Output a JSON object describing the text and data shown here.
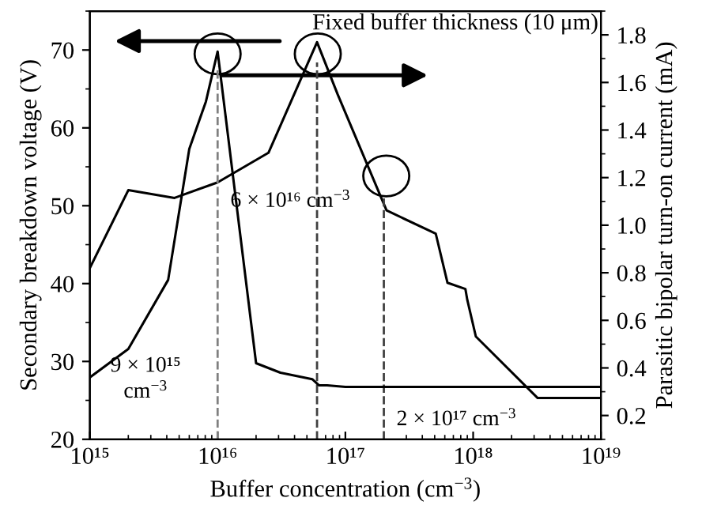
{
  "chart_data": {
    "type": "line",
    "xlabel": "Buffer concentration (cm$^{−3}$)",
    "ylabel": "Secondary breakdown voltage (V)",
    "y2label": "Parasitic bipolar turn-on current (mA)",
    "log": "x",
    "xlim": [
      1000000000000000.0,
      1e+19
    ],
    "xticks": [
      {
        "value": 1000000000000000.0,
        "label": "10¹⁵"
      },
      {
        "value": 1e+16,
        "label": "10¹⁶"
      },
      {
        "value": 1e+17,
        "label": "10¹⁷"
      },
      {
        "value": 1e+18,
        "label": "10¹⁸"
      },
      {
        "value": 1e+19,
        "label": "10¹⁹"
      }
    ],
    "ylim": [
      20,
      75
    ],
    "yticks": [
      20,
      30,
      40,
      50,
      60,
      70
    ],
    "y2lim": [
      0.1,
      1.9
    ],
    "y2ticks": [
      {
        "value": 0.2,
        "label": "0.2"
      },
      {
        "value": 0.4,
        "label": "0.4"
      },
      {
        "value": 0.6,
        "label": "0.6"
      },
      {
        "value": 0.8,
        "label": "0.8"
      },
      {
        "value": 1.0,
        "label": "1.0"
      },
      {
        "value": 1.2,
        "label": "1.2"
      },
      {
        "value": 1.4,
        "label": "1.4"
      },
      {
        "value": 1.6,
        "label": "1.6"
      },
      {
        "value": 1.8,
        "label": "1.8"
      }
    ],
    "grid": false,
    "legend": false,
    "marker": "none",
    "line_style": "solid",
    "series": [
      {
        "color": "#000000",
        "x": [
          1000000000000000.0,
          2000000000000000.0,
          4600000000000000.0,
          1e+16,
          2.5e+16,
          6e+16,
          8.7e+16,
          2.1e+17,
          5.1e+17,
          6.3e+17,
          8.7e+17,
          9e+17,
          1.05e+18,
          3.2e+18,
          1e+19
        ],
        "values": [
          42,
          52,
          51,
          53,
          56.8,
          71,
          64.3,
          49.4,
          46.4,
          40.1,
          39.3,
          37.9,
          33.2,
          25.3,
          25.3
        ]
      },
      {
        "color": "#000000",
        "axis": "y2",
        "x": [
          1000000000000000.0,
          2000000000000000.0,
          4100000000000000.0,
          6000000000000000.0,
          8100000000000000.0,
          1e+16,
          2e+16,
          3.1e+16,
          5.5e+16,
          6.2e+16,
          7.2e+16,
          1e+17,
          1e+18,
          1e+19
        ],
        "values": [
          0.36,
          0.48,
          0.77,
          1.32,
          1.52,
          1.73,
          0.42,
          0.38,
          0.353,
          0.327,
          0.327,
          0.32,
          0.32,
          0.32
        ]
      }
    ],
    "ref_lines": [
      {
        "axis": "x",
        "value": 1e+16,
        "color": "#808080",
        "line_style": "dashed"
      },
      {
        "axis": "x",
        "value": 6e+16,
        "color": "#404040",
        "line_style": "dashed"
      },
      {
        "axis": "x",
        "value": 2e+17,
        "color": "#404040",
        "line_style": "dashed"
      }
    ],
    "annotations": [
      "Fixed buffer thickness (10 μm)",
      "6 × 10¹⁶ cm$^{−3}$",
      "9 × 10¹⁵\ncm$^{−3}$",
      "2 × 10¹⁷ cm$^{−3}$"
    ]
  }
}
